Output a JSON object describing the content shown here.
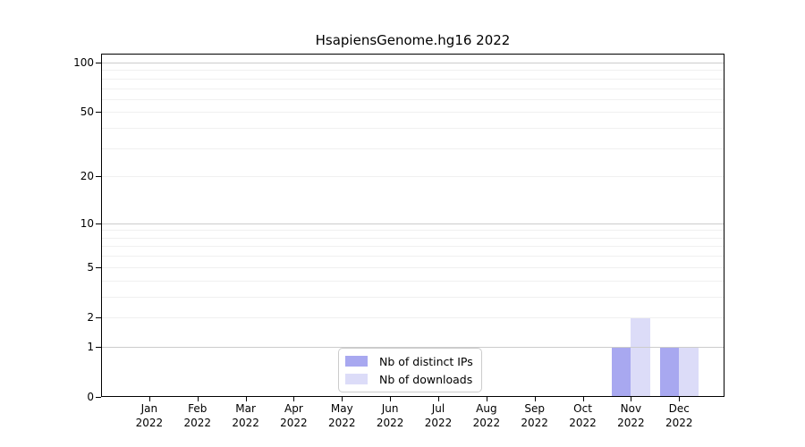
{
  "chart_data": {
    "type": "bar",
    "title": "HsapiensGenome.hg16 2022",
    "months": [
      "Jan",
      "Feb",
      "Mar",
      "Apr",
      "May",
      "Jun",
      "Jul",
      "Aug",
      "Sep",
      "Oct",
      "Nov",
      "Dec"
    ],
    "year": "2022",
    "series": [
      {
        "name": "Nb of distinct IPs",
        "color": "#a8a8f0",
        "values": [
          0,
          0,
          0,
          0,
          0,
          0,
          0,
          0,
          0,
          0,
          1,
          1
        ]
      },
      {
        "name": "Nb of downloads",
        "color": "#dcdcf8",
        "values": [
          0,
          0,
          0,
          0,
          0,
          0,
          0,
          0,
          0,
          0,
          2,
          1
        ]
      }
    ],
    "y_axis": {
      "scale": "log1p",
      "ylim": [
        0,
        100
      ],
      "tick_values": [
        0,
        1,
        2,
        5,
        10,
        20,
        50,
        100
      ],
      "major_gridlines": [
        1,
        10,
        100
      ],
      "minor_gridlines": [
        2,
        3,
        4,
        5,
        6,
        7,
        8,
        9,
        20,
        30,
        40,
        50,
        60,
        70,
        80,
        90
      ]
    },
    "legend": {
      "position": "bottom-center",
      "entries": [
        "Nb of distinct IPs",
        "Nb of downloads"
      ]
    },
    "colors": {
      "major_grid": "#cccccc",
      "minor_grid": "#f0f0f0",
      "spine": "#000000",
      "background": "#ffffff"
    }
  }
}
